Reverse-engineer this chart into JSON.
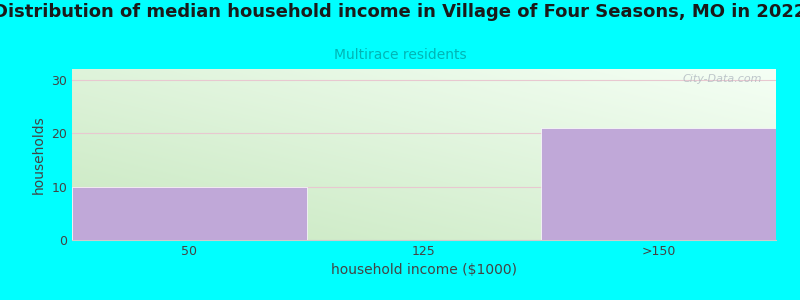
{
  "title": "Distribution of median household income in Village of Four Seasons, MO in 2022",
  "subtitle": "Multirace residents",
  "subtitle_color": "#00b5b5",
  "categories": [
    "50",
    "125",
    ">150"
  ],
  "values": [
    10,
    0,
    21
  ],
  "bar_color": "#c0a8d8",
  "ylabel": "households",
  "xlabel": "household income ($1000)",
  "ylim": [
    0,
    32
  ],
  "yticks": [
    0,
    10,
    20,
    30
  ],
  "background_color": "#00ffff",
  "plot_bg_color_bottom_left": "#c8e8c0",
  "plot_bg_color_top_right": "#f8f8ff",
  "grid_color": "#e8c8d0",
  "watermark": "City-Data.com",
  "title_fontsize": 13,
  "subtitle_fontsize": 10,
  "tick_fontsize": 9,
  "axis_label_fontsize": 10
}
